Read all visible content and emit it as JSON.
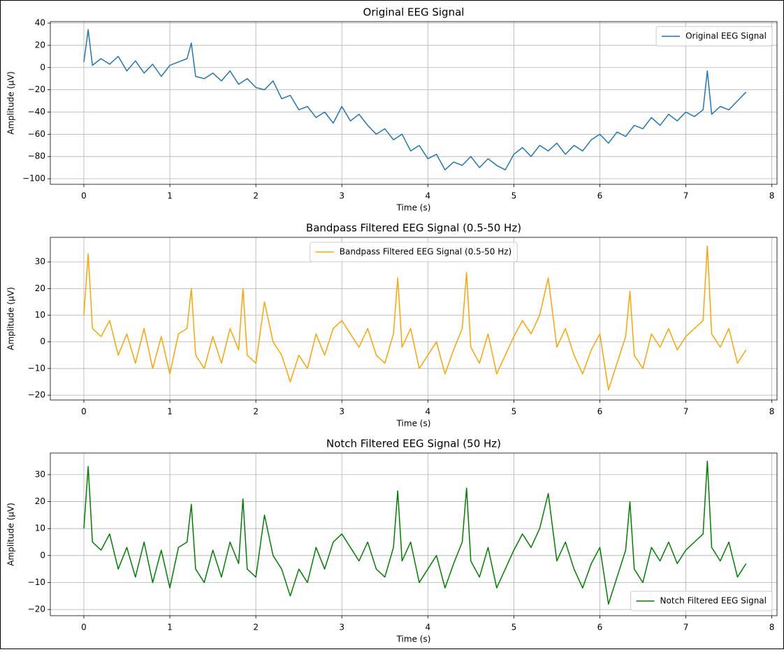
{
  "chart_data": [
    {
      "type": "line",
      "title": "Original EEG Signal",
      "xlabel": "Time (s)",
      "ylabel": "Amplitude (µV)",
      "xlim": [
        -0.39,
        8.06
      ],
      "ylim": [
        -105,
        41.3
      ],
      "xticks": [
        0,
        1,
        2,
        3,
        4,
        5,
        6,
        7,
        8
      ],
      "yticks": [
        {
          "value": -100,
          "label": "−100"
        },
        {
          "value": -80,
          "label": "−80"
        },
        {
          "value": -60,
          "label": "−60"
        },
        {
          "value": -40,
          "label": "−40"
        },
        {
          "value": -20,
          "label": "−20"
        },
        0,
        20,
        40
      ],
      "grid": true,
      "legend": "upper right",
      "x": [
        0,
        0.05,
        0.1,
        0.2,
        0.3,
        0.4,
        0.5,
        0.6,
        0.7,
        0.8,
        0.9,
        1.0,
        1.1,
        1.2,
        1.25,
        1.3,
        1.4,
        1.5,
        1.6,
        1.7,
        1.8,
        1.9,
        2.0,
        2.1,
        2.2,
        2.3,
        2.4,
        2.5,
        2.6,
        2.7,
        2.8,
        2.9,
        3.0,
        3.1,
        3.2,
        3.3,
        3.4,
        3.5,
        3.6,
        3.7,
        3.8,
        3.9,
        4.0,
        4.1,
        4.2,
        4.3,
        4.4,
        4.5,
        4.6,
        4.7,
        4.8,
        4.9,
        5.0,
        5.1,
        5.2,
        5.3,
        5.4,
        5.5,
        5.6,
        5.7,
        5.8,
        5.9,
        6.0,
        6.1,
        6.2,
        6.3,
        6.4,
        6.5,
        6.6,
        6.7,
        6.8,
        6.9,
        7.0,
        7.1,
        7.2,
        7.25,
        7.3,
        7.4,
        7.5,
        7.6,
        7.7
      ],
      "series": [
        {
          "name": "Original EEG Signal",
          "color": "#1f77b4",
          "values": [
            5,
            34,
            2,
            8,
            3,
            10,
            -3,
            6,
            -5,
            3,
            -8,
            2,
            5,
            8,
            22,
            -8,
            -10,
            -5,
            -12,
            -3,
            -15,
            -10,
            -18,
            -20,
            -12,
            -28,
            -25,
            -38,
            -35,
            -45,
            -40,
            -50,
            -35,
            -48,
            -42,
            -52,
            -60,
            -55,
            -65,
            -60,
            -75,
            -70,
            -82,
            -78,
            -92,
            -85,
            -88,
            -80,
            -90,
            -82,
            -88,
            -92,
            -78,
            -72,
            -80,
            -70,
            -75,
            -68,
            -78,
            -70,
            -75,
            -65,
            -60,
            -68,
            -58,
            -62,
            -52,
            -55,
            -45,
            -52,
            -42,
            -48,
            -40,
            -44,
            -38,
            -3,
            -42,
            -35,
            -38,
            -30,
            -22
          ]
        }
      ]
    },
    {
      "type": "line",
      "title": "Bandpass Filtered EEG Signal (0.5-50 Hz)",
      "xlabel": "Time (s)",
      "ylabel": "Amplitude (µV)",
      "xlim": [
        -0.39,
        8.06
      ],
      "ylim": [
        -21.8,
        39.2
      ],
      "xticks": [
        0,
        1,
        2,
        3,
        4,
        5,
        6,
        7,
        8
      ],
      "yticks": [
        {
          "value": -20,
          "label": "−20"
        },
        {
          "value": -10,
          "label": "−10"
        },
        0,
        10,
        20,
        30
      ],
      "grid": true,
      "legend": "upper center",
      "x": [
        0,
        0.05,
        0.1,
        0.2,
        0.3,
        0.4,
        0.5,
        0.6,
        0.7,
        0.8,
        0.9,
        1.0,
        1.1,
        1.2,
        1.25,
        1.3,
        1.4,
        1.5,
        1.6,
        1.7,
        1.8,
        1.85,
        1.9,
        2.0,
        2.1,
        2.2,
        2.3,
        2.4,
        2.5,
        2.6,
        2.7,
        2.8,
        2.9,
        3.0,
        3.1,
        3.2,
        3.3,
        3.4,
        3.5,
        3.6,
        3.65,
        3.7,
        3.8,
        3.9,
        4.0,
        4.1,
        4.2,
        4.3,
        4.4,
        4.45,
        4.5,
        4.6,
        4.7,
        4.8,
        4.9,
        5.0,
        5.1,
        5.2,
        5.3,
        5.4,
        5.5,
        5.6,
        5.7,
        5.8,
        5.9,
        6.0,
        6.1,
        6.2,
        6.3,
        6.35,
        6.4,
        6.5,
        6.6,
        6.7,
        6.8,
        6.9,
        7.0,
        7.1,
        7.2,
        7.25,
        7.3,
        7.4,
        7.5,
        7.6,
        7.7
      ],
      "series": [
        {
          "name": "Bandpass Filtered EEG Signal (0.5-50 Hz)",
          "color": "#ffa500",
          "values": [
            10,
            33,
            5,
            2,
            8,
            -5,
            3,
            -8,
            5,
            -10,
            2,
            -12,
            3,
            5,
            20,
            -5,
            -10,
            2,
            -8,
            5,
            -3,
            20,
            -5,
            -8,
            15,
            0,
            -5,
            -15,
            -5,
            -10,
            3,
            -5,
            5,
            8,
            3,
            -2,
            5,
            -5,
            -8,
            3,
            24,
            -2,
            5,
            -10,
            -5,
            0,
            -12,
            -3,
            5,
            26,
            -2,
            -8,
            3,
            -12,
            -5,
            2,
            8,
            3,
            10,
            24,
            -2,
            5,
            -5,
            -12,
            -3,
            3,
            -18,
            -8,
            2,
            19,
            -5,
            -10,
            3,
            -2,
            5,
            -3,
            2,
            5,
            8,
            36,
            3,
            -2,
            5,
            -8,
            -3
          ]
        }
      ]
    },
    {
      "type": "line",
      "title": "Notch Filtered EEG Signal (50 Hz)",
      "xlabel": "Time (s)",
      "ylabel": "Amplitude (µV)",
      "xlim": [
        -0.39,
        8.06
      ],
      "ylim": [
        -22.3,
        38
      ],
      "xticks": [
        0,
        1,
        2,
        3,
        4,
        5,
        6,
        7,
        8
      ],
      "yticks": [
        {
          "value": -20,
          "label": "−20"
        },
        {
          "value": -10,
          "label": "−10"
        },
        0,
        10,
        20,
        30
      ],
      "grid": true,
      "legend": "lower right",
      "x": [
        0,
        0.05,
        0.1,
        0.2,
        0.3,
        0.4,
        0.5,
        0.6,
        0.7,
        0.8,
        0.9,
        1.0,
        1.1,
        1.2,
        1.25,
        1.3,
        1.4,
        1.5,
        1.6,
        1.7,
        1.8,
        1.85,
        1.9,
        2.0,
        2.1,
        2.2,
        2.3,
        2.4,
        2.5,
        2.6,
        2.7,
        2.8,
        2.9,
        3.0,
        3.1,
        3.2,
        3.3,
        3.4,
        3.5,
        3.6,
        3.65,
        3.7,
        3.8,
        3.9,
        4.0,
        4.1,
        4.2,
        4.3,
        4.4,
        4.45,
        4.5,
        4.6,
        4.7,
        4.8,
        4.9,
        5.0,
        5.1,
        5.2,
        5.3,
        5.4,
        5.5,
        5.6,
        5.7,
        5.8,
        5.9,
        6.0,
        6.1,
        6.2,
        6.3,
        6.35,
        6.4,
        6.5,
        6.6,
        6.7,
        6.8,
        6.9,
        7.0,
        7.1,
        7.2,
        7.25,
        7.3,
        7.4,
        7.5,
        7.6,
        7.7
      ],
      "series": [
        {
          "name": "Notch Filtered EEG Signal",
          "color": "#008000",
          "values": [
            10,
            33,
            5,
            2,
            8,
            -5,
            3,
            -8,
            5,
            -10,
            2,
            -12,
            3,
            5,
            19,
            -5,
            -10,
            2,
            -8,
            5,
            -3,
            21,
            -5,
            -8,
            15,
            0,
            -5,
            -15,
            -5,
            -10,
            3,
            -5,
            5,
            8,
            3,
            -2,
            5,
            -5,
            -8,
            3,
            24,
            -2,
            5,
            -10,
            -5,
            0,
            -12,
            -3,
            5,
            25,
            -2,
            -8,
            3,
            -12,
            -5,
            2,
            8,
            3,
            10,
            23,
            -2,
            5,
            -5,
            -12,
            -3,
            3,
            -18,
            -8,
            2,
            20,
            -5,
            -10,
            3,
            -2,
            5,
            -3,
            2,
            5,
            8,
            35,
            3,
            -2,
            5,
            -8,
            -3
          ]
        }
      ]
    }
  ]
}
